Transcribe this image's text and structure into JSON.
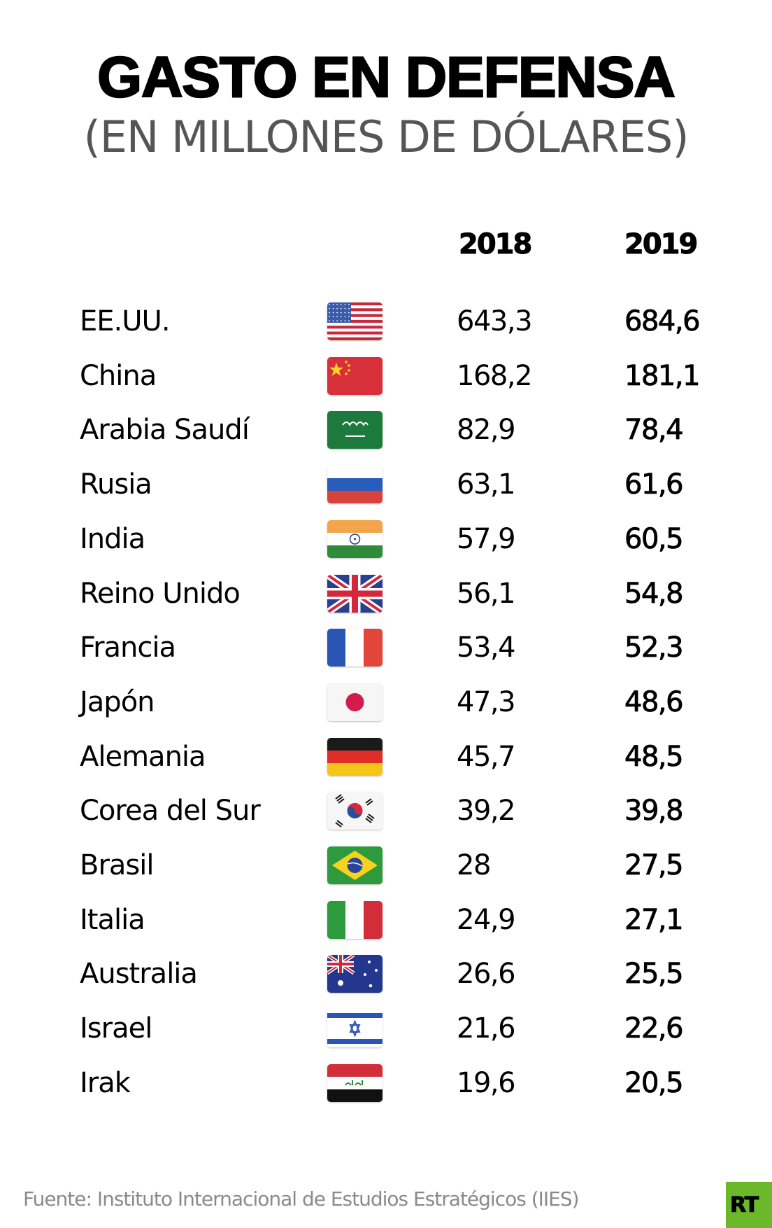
{
  "title": "GASTO EN DEFENSA",
  "subtitle": "(EN MILLONES DE DÓLARES)",
  "columns": {
    "year1": "2018",
    "year2": "2019"
  },
  "rows": [
    {
      "country": "EE.UU.",
      "flag": "us-flag-icon",
      "v2018": "643,3",
      "v2019": "684,6"
    },
    {
      "country": "China",
      "flag": "china-flag-icon",
      "v2018": "168,2",
      "v2019": "181,1"
    },
    {
      "country": "Arabia Saudí",
      "flag": "saudi-arabia-flag-icon",
      "v2018": "82,9",
      "v2019": "78,4"
    },
    {
      "country": "Rusia",
      "flag": "russia-flag-icon",
      "v2018": "63,1",
      "v2019": "61,6"
    },
    {
      "country": "India",
      "flag": "india-flag-icon",
      "v2018": "57,9",
      "v2019": "60,5"
    },
    {
      "country": "Reino Unido",
      "flag": "uk-flag-icon",
      "v2018": "56,1",
      "v2019": "54,8"
    },
    {
      "country": "Francia",
      "flag": "france-flag-icon",
      "v2018": "53,4",
      "v2019": "52,3"
    },
    {
      "country": "Japón",
      "flag": "japan-flag-icon",
      "v2018": "47,3",
      "v2019": "48,6"
    },
    {
      "country": "Alemania",
      "flag": "germany-flag-icon",
      "v2018": "45,7",
      "v2019": "48,5"
    },
    {
      "country": "Corea del Sur",
      "flag": "south-korea-flag-icon",
      "v2018": "39,2",
      "v2019": "39,8"
    },
    {
      "country": "Brasil",
      "flag": "brazil-flag-icon",
      "v2018": "28",
      "v2019": "27,5"
    },
    {
      "country": "Italia",
      "flag": "italy-flag-icon",
      "v2018": "24,9",
      "v2019": "27,1"
    },
    {
      "country": "Australia",
      "flag": "australia-flag-icon",
      "v2018": "26,6",
      "v2019": "25,5"
    },
    {
      "country": "Israel",
      "flag": "israel-flag-icon",
      "v2018": "21,6",
      "v2019": "22,6"
    },
    {
      "country": "Irak",
      "flag": "iraq-flag-icon",
      "v2018": "19,6",
      "v2019": "20,5"
    }
  ],
  "footer": {
    "source": "Fuente: Instituto Internacional de Estudios Estratégicos (IIES)"
  },
  "logo": {
    "text": "RT",
    "color": "#6bb82a"
  }
}
